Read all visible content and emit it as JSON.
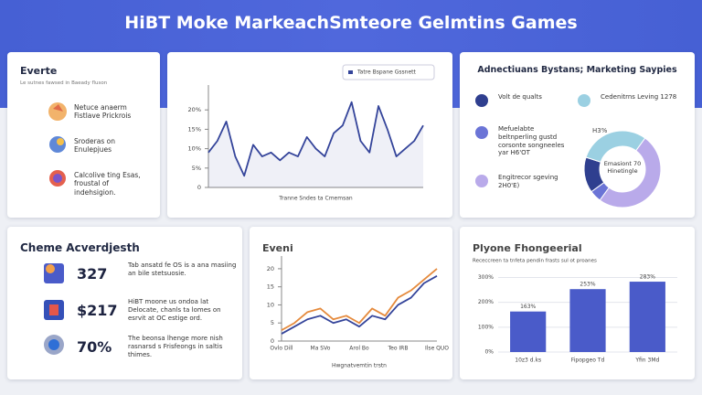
{
  "header": {
    "title": "HiBT Moke MarkeachSmteore Gelmtins Games"
  },
  "events": {
    "title": "Everte",
    "subtitle": "Le sutnes fawsed in Baeady fluson",
    "items": [
      "Netuce anaerm Fistlave Prickrois",
      "Sroderas on Enulepjues",
      "Calcolive ting Esas, froustal of indehsigion."
    ]
  },
  "stats": {
    "title": "Cheme Acverdjesth",
    "items": [
      {
        "value": "327",
        "text": "Tab ansatd fe OS is a ana masiing an bile stetsuosie."
      },
      {
        "value": "$217",
        "text": "HiBT moone us ondoa lat Delocate, chanls ta lomes on esrvit at OC estige ord."
      },
      {
        "value": "70%",
        "text": "The beonsa lhenge more nish rasnarsd s Frisfeongs in saltis thimes."
      }
    ]
  },
  "chart_data": [
    {
      "type": "line",
      "xlabel": "Tranne Sndes ta Cmemsan",
      "categories": [
        null,
        null,
        null,
        null,
        null,
        null,
        null,
        null,
        null,
        null,
        null,
        null,
        null,
        null,
        null,
        null,
        null,
        null,
        null,
        null,
        null,
        null,
        null,
        null,
        null
      ],
      "series": [
        {
          "name": "Tatre Bspane Gssnett",
          "color": "#34449a",
          "values": [
            9,
            12,
            17,
            8,
            3,
            11,
            8,
            9,
            7,
            9,
            8,
            13,
            10,
            8,
            14,
            16,
            22,
            12,
            9,
            21,
            15,
            8,
            10,
            12,
            16
          ]
        }
      ],
      "ylim": [
        0,
        25
      ],
      "yticks": [
        0,
        {
          "value": 5,
          "label": "5%"
        },
        {
          "value": 10,
          "label": "10%"
        },
        {
          "value": 15,
          "label": "15%"
        },
        {
          "value": 20,
          "label": "20%"
        }
      ],
      "legend": "top-right"
    },
    {
      "type": "pie",
      "title": "Adnectiuans Bystans; Marketing Saypies",
      "donut": true,
      "categories": [
        "Volt de qualts",
        "Mefuelabte beltnperling gustd corsonte songneeles yar H6'OT",
        "Engitrecor sgeving 2H0'E)",
        "Cedenitrns Leving 1278"
      ],
      "values": [
        15,
        5,
        50,
        30
      ],
      "colors": [
        "#2f3f8f",
        "#6b74d6",
        "#b9aaea",
        "#9bd0e2"
      ],
      "annotation": "H3%",
      "center_text": "Emasiont 70 Hinetingle"
    },
    {
      "type": "line",
      "title": "Eveni",
      "xlabel": "Hwgnatvemtin trstn",
      "categories": [
        "Ovlo Dill",
        null,
        null,
        "Ma SVo",
        null,
        null,
        "Arol Bo",
        null,
        null,
        "Teo IRB",
        null,
        null,
        "Ilse QUO"
      ],
      "series": [
        {
          "color": "#34449a",
          "values": [
            2,
            4,
            6,
            7,
            5,
            6,
            4,
            7,
            6,
            10,
            12,
            16,
            18
          ]
        },
        {
          "color": "#e58a3c",
          "values": [
            3,
            5,
            8,
            9,
            6,
            7,
            5,
            9,
            7,
            12,
            14,
            17,
            20
          ]
        }
      ],
      "ylim": [
        0,
        22
      ],
      "yticks": [
        0,
        5,
        10,
        15,
        20
      ]
    },
    {
      "type": "bar",
      "title": "Plyone Fhongeerial",
      "subtitle": "Receccreen ta tnfeta pendin frasts sul ot proanes",
      "categories": [
        "10z3 d.ks",
        "Fipopgeo Td",
        "Yfin 3Md"
      ],
      "values": [
        163,
        253,
        283
      ],
      "value_labels": [
        "163%",
        "253%",
        "283%"
      ],
      "color": "#4a5bc9",
      "ylim": [
        0,
        320
      ],
      "yticks": [
        {
          "value": 0,
          "label": "0%"
        },
        {
          "value": 100,
          "label": "100%"
        },
        {
          "value": 200,
          "label": "200%"
        },
        {
          "value": 300,
          "label": "300%"
        }
      ],
      "grid": true
    }
  ]
}
